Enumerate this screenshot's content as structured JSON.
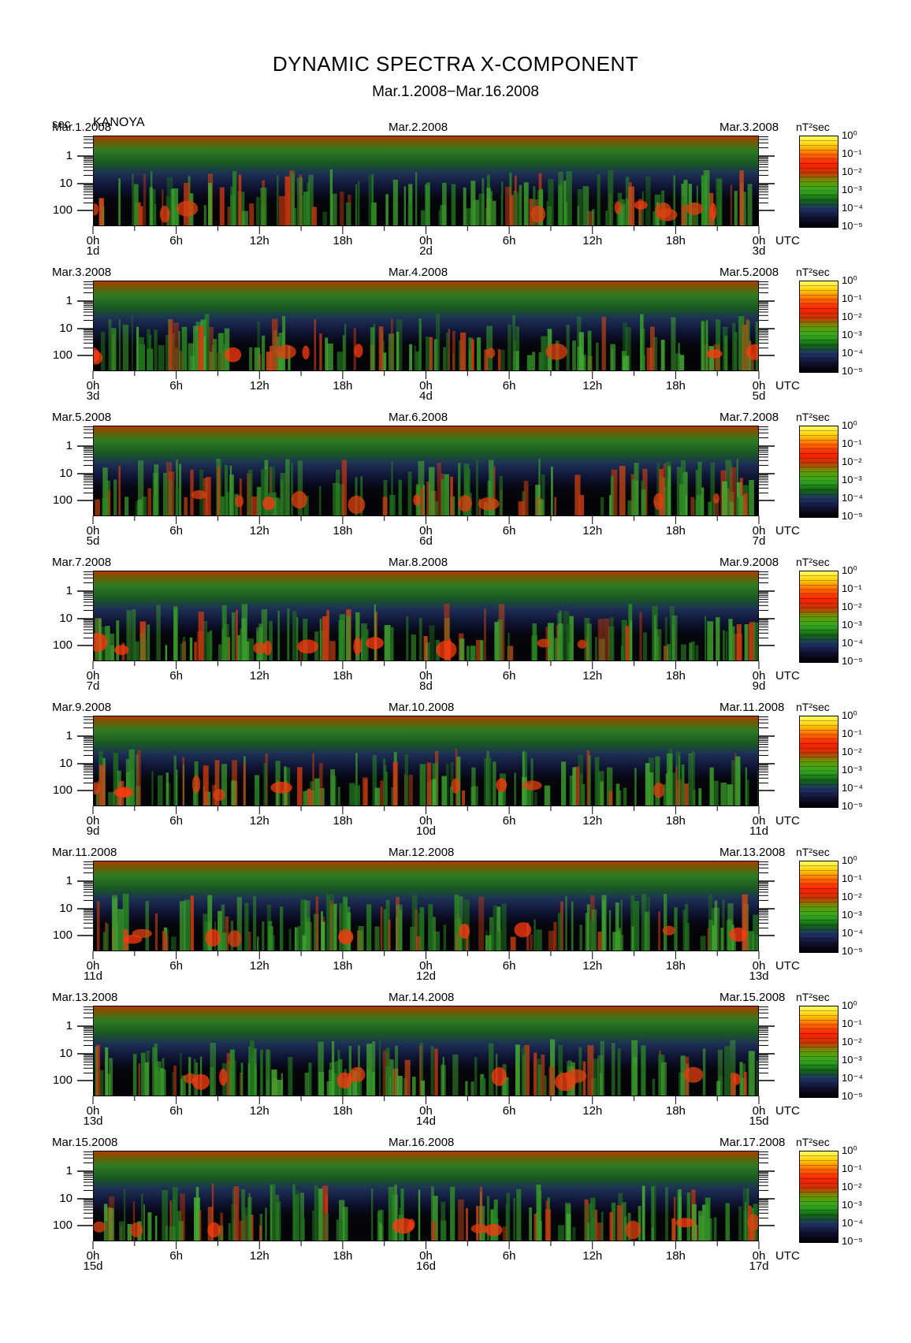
{
  "header": {
    "title": "DYNAMIC SPECTRA X-COMPONENT",
    "subtitle": "Mar.1.2008−Mar.16.2008",
    "y_unit": "sec",
    "station": "KANOYA"
  },
  "colorbar": {
    "unit_label": "nT²sec",
    "levels": [
      "10⁰",
      "10⁻¹",
      "10⁻²",
      "10⁻³",
      "10⁻⁴",
      "10⁻⁵"
    ],
    "colors": [
      "#ffff66",
      "#ffcc00",
      "#ff6600",
      "#ff2200",
      "#cc3300",
      "#669900",
      "#33aa22",
      "#116611",
      "#223366",
      "#111133",
      "#000000"
    ]
  },
  "time_axis": {
    "hour_labels": [
      "0h",
      "6h",
      "12h",
      "18h",
      "0h",
      "6h",
      "12h",
      "18h",
      "0h"
    ],
    "tz_label": "UTC"
  },
  "chart_data": {
    "type": "heatmap",
    "title": "DYNAMIC SPECTRA X-COMPONENT",
    "subtitle": "Mar.1.2008−Mar.16.2008",
    "ylabel": "sec",
    "yscale": "log",
    "y_ticks": [
      "1",
      "10",
      "100"
    ],
    "z_unit": "nT²sec",
    "z_range": [
      1e-05,
      1
    ],
    "panels": [
      {
        "left_date": "Mar.1.2008",
        "mid_date": "Mar.2.2008",
        "right_date": "Mar.3.2008",
        "day_labels": [
          "1d",
          "2d",
          "3d"
        ]
      },
      {
        "left_date": "Mar.3.2008",
        "mid_date": "Mar.4.2008",
        "right_date": "Mar.5.2008",
        "day_labels": [
          "3d",
          "4d",
          "5d"
        ]
      },
      {
        "left_date": "Mar.5.2008",
        "mid_date": "Mar.6.2008",
        "right_date": "Mar.7.2008",
        "day_labels": [
          "5d",
          "6d",
          "7d"
        ]
      },
      {
        "left_date": "Mar.7.2008",
        "mid_date": "Mar.8.2008",
        "right_date": "Mar.9.2008",
        "day_labels": [
          "7d",
          "8d",
          "9d"
        ]
      },
      {
        "left_date": "Mar.9.2008",
        "mid_date": "Mar.10.2008",
        "right_date": "Mar.11.2008",
        "day_labels": [
          "9d",
          "10d",
          "11d"
        ]
      },
      {
        "left_date": "Mar.11.2008",
        "mid_date": "Mar.12.2008",
        "right_date": "Mar.13.2008",
        "day_labels": [
          "11d",
          "12d",
          "13d"
        ]
      },
      {
        "left_date": "Mar.13.2008",
        "mid_date": "Mar.14.2008",
        "right_date": "Mar.15.2008",
        "day_labels": [
          "13d",
          "14d",
          "15d"
        ]
      },
      {
        "left_date": "Mar.15.2008",
        "mid_date": "Mar.16.2008",
        "right_date": "Mar.17.2008",
        "day_labels": [
          "15d",
          "16d",
          "17d"
        ]
      }
    ]
  }
}
